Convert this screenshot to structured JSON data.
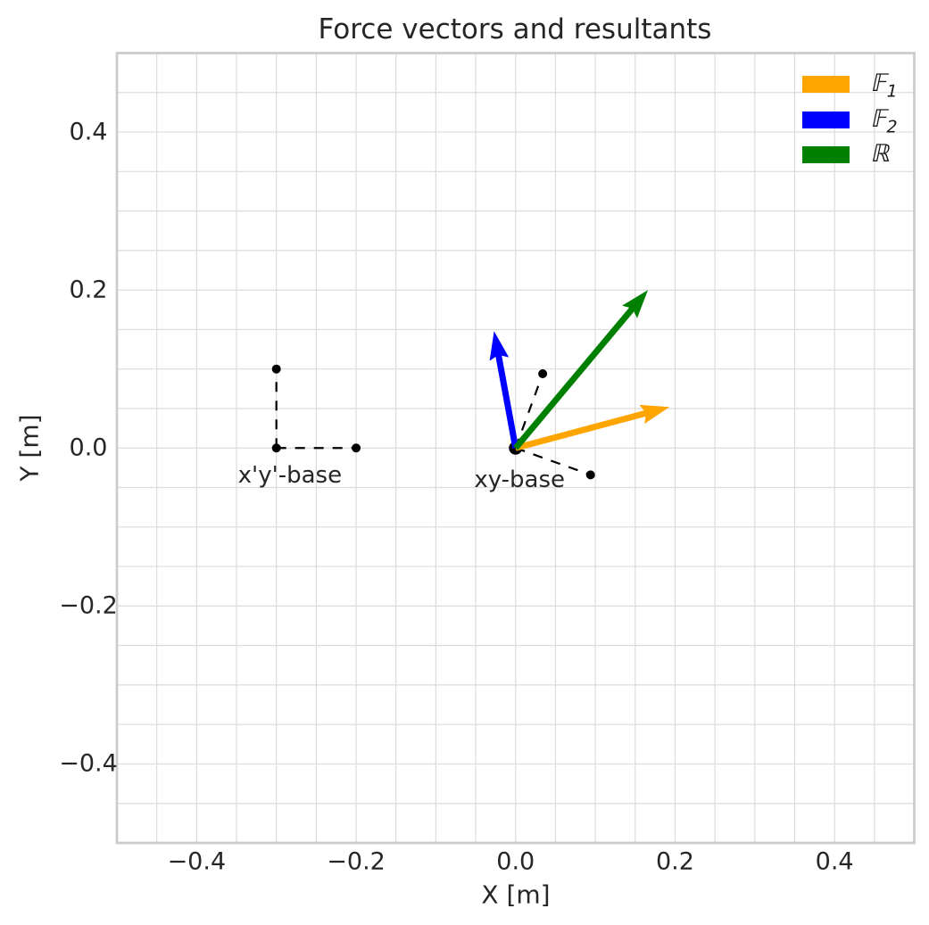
{
  "chart_data": {
    "type": "quiver",
    "title": "Force vectors and resultants",
    "xlabel": "X [m]",
    "ylabel": "Y [m]",
    "xlim": [
      -0.5,
      0.5
    ],
    "ylim": [
      -0.5,
      0.5
    ],
    "xticks": [
      -0.4,
      -0.2,
      0.0,
      0.2,
      0.4
    ],
    "yticks": [
      -0.4,
      -0.2,
      0.0,
      0.2,
      0.4
    ],
    "grid": true,
    "grid_step": 0.05,
    "legend_position": "upper right",
    "vectors": [
      {
        "name": "F1",
        "label_symbol": "𝔽",
        "label_sub": "1",
        "color": "#ffa500",
        "origin": [
          0,
          0
        ],
        "tip": [
          0.193,
          0.052
        ]
      },
      {
        "name": "F2",
        "label_symbol": "𝔽",
        "label_sub": "2",
        "color": "#0000ff",
        "origin": [
          0,
          0
        ],
        "tip": [
          -0.027,
          0.148
        ]
      },
      {
        "name": "R",
        "label_symbol": "ℝ",
        "label_sub": "",
        "color": "#008000",
        "origin": [
          0,
          0
        ],
        "tip": [
          0.166,
          0.2
        ]
      }
    ],
    "frames": [
      {
        "label": "x'y'-base",
        "origin": [
          -0.3,
          0.0
        ],
        "x_end": [
          -0.2,
          0.0
        ],
        "y_end": [
          -0.3,
          0.1
        ],
        "label_pos": [
          -0.283,
          -0.035
        ],
        "origin_dot": "small"
      },
      {
        "label": "xy-base",
        "origin": [
          0.0,
          0.0
        ],
        "x_end": [
          0.094,
          -0.034
        ],
        "y_end": [
          0.034,
          0.094
        ],
        "label_pos": [
          0.005,
          -0.04
        ],
        "origin_dot": "large"
      }
    ]
  },
  "styles": {
    "background": "#ffffff",
    "grid_color": "#dcdcdc",
    "spine_color": "#cccccc",
    "text_color": "#262626",
    "frame_line_color": "#000000"
  }
}
